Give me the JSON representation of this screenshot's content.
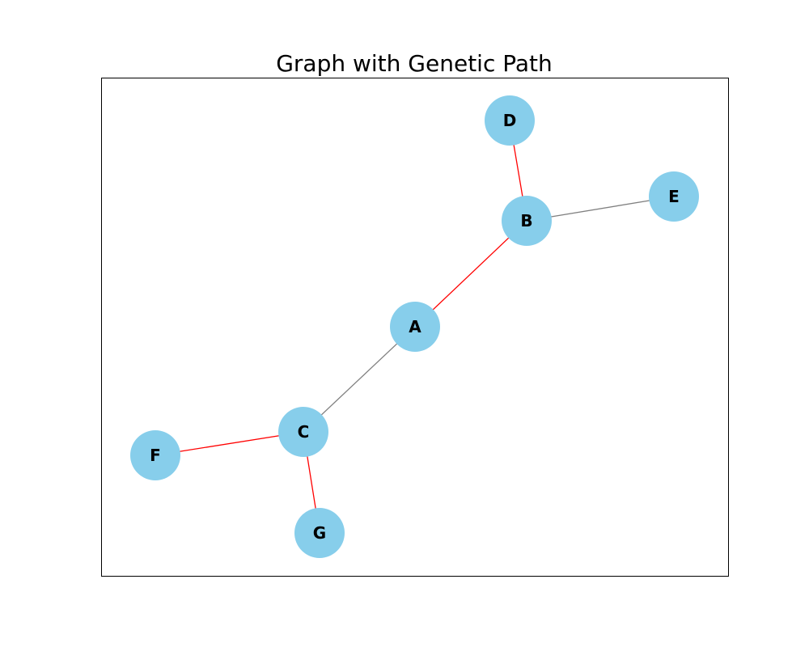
{
  "title": "Graph with Genetic Path",
  "colors": {
    "node_fill": "#87CEEB",
    "path_edge": "#ff0000",
    "other_edge": "#808080",
    "frame": "#000000",
    "background": "#ffffff"
  },
  "nodes": [
    {
      "id": "A",
      "label": "A"
    },
    {
      "id": "B",
      "label": "B"
    },
    {
      "id": "C",
      "label": "C"
    },
    {
      "id": "D",
      "label": "D"
    },
    {
      "id": "E",
      "label": "E"
    },
    {
      "id": "F",
      "label": "F"
    },
    {
      "id": "G",
      "label": "G"
    }
  ],
  "edges": [
    {
      "source": "A",
      "target": "B",
      "on_path": true
    },
    {
      "source": "A",
      "target": "C",
      "on_path": false
    },
    {
      "source": "B",
      "target": "D",
      "on_path": true
    },
    {
      "source": "B",
      "target": "E",
      "on_path": false
    },
    {
      "source": "C",
      "target": "F",
      "on_path": true
    },
    {
      "source": "C",
      "target": "G",
      "on_path": true
    }
  ]
}
